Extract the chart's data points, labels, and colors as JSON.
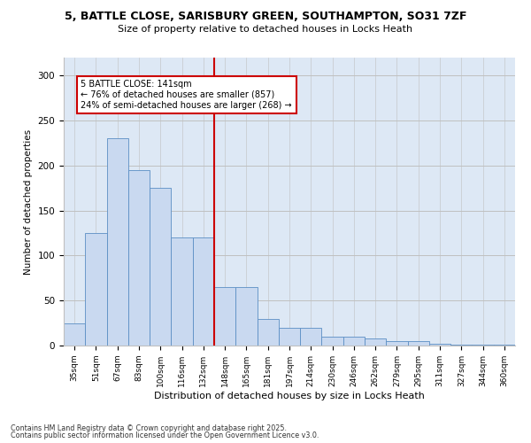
{
  "title_line1": "5, BATTLE CLOSE, SARISBURY GREEN, SOUTHAMPTON, SO31 7ZF",
  "title_line2": "Size of property relative to detached houses in Locks Heath",
  "xlabel": "Distribution of detached houses by size in Locks Heath",
  "ylabel": "Number of detached properties",
  "categories": [
    "35sqm",
    "51sqm",
    "67sqm",
    "83sqm",
    "100sqm",
    "116sqm",
    "132sqm",
    "148sqm",
    "165sqm",
    "181sqm",
    "197sqm",
    "214sqm",
    "230sqm",
    "246sqm",
    "262sqm",
    "279sqm",
    "295sqm",
    "311sqm",
    "327sqm",
    "344sqm",
    "360sqm"
  ],
  "bar_values": [
    25,
    125,
    230,
    195,
    175,
    120,
    120,
    65,
    65,
    30,
    20,
    20,
    10,
    10,
    8,
    5,
    5,
    2,
    1,
    1,
    1
  ],
  "bar_color": "#c9d9f0",
  "bar_edgecolor": "#5b8ec4",
  "vline_x_index": 7,
  "vline_color": "#cc0000",
  "annotation_line1": "5 BATTLE CLOSE: 141sqm",
  "annotation_line2": "← 76% of detached houses are smaller (857)",
  "annotation_line3": "24% of semi-detached houses are larger (268) →",
  "annotation_box_edgecolor": "#cc0000",
  "grid_color": "#c0c0c0",
  "background_color": "#dde8f5",
  "footer_line1": "Contains HM Land Registry data © Crown copyright and database right 2025.",
  "footer_line2": "Contains public sector information licensed under the Open Government Licence v3.0.",
  "ylim": [
    0,
    320
  ],
  "yticks": [
    0,
    50,
    100,
    150,
    200,
    250,
    300
  ]
}
